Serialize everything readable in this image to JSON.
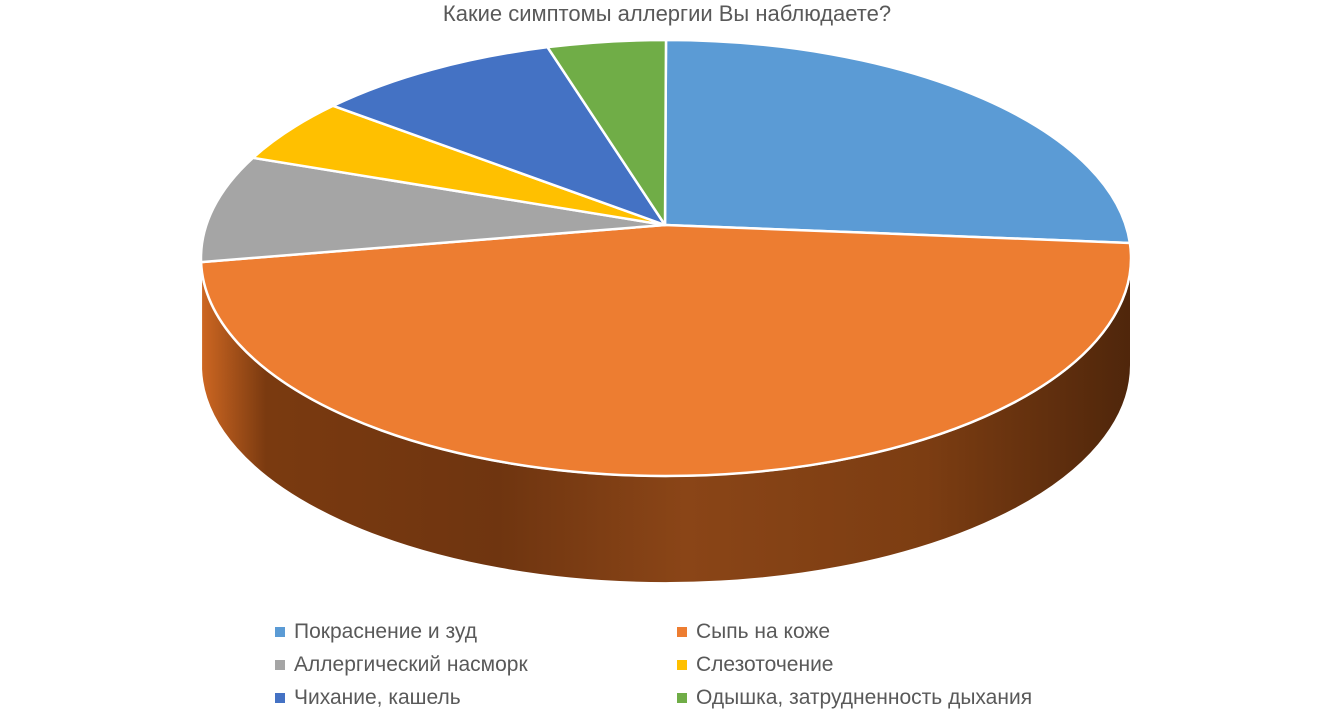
{
  "page": {
    "background": "#ffffff",
    "text_color": "#595959"
  },
  "chart_data": {
    "type": "pie",
    "projection": "3d",
    "title": "Какие симптомы аллергии Вы наблюдаете?",
    "start_angle": 0,
    "direction": "clockwise",
    "unit": "%",
    "categories": [
      "Покраснение и зуд",
      "Сыпь на коже",
      "Аллергический насморк",
      "Слезоточение",
      "Чихание, кашель",
      "Одышка, затрудненность дыхания"
    ],
    "values": [
      23.9,
      50.8,
      7.9,
      4.7,
      8.6,
      4.1
    ],
    "colors": [
      "#5B9BD5",
      "#ED7D31",
      "#A5A5A5",
      "#FFC000",
      "#4472C4",
      "#70AD47"
    ],
    "legend": {
      "position": "bottom",
      "columns": 2,
      "marker": "square"
    }
  }
}
